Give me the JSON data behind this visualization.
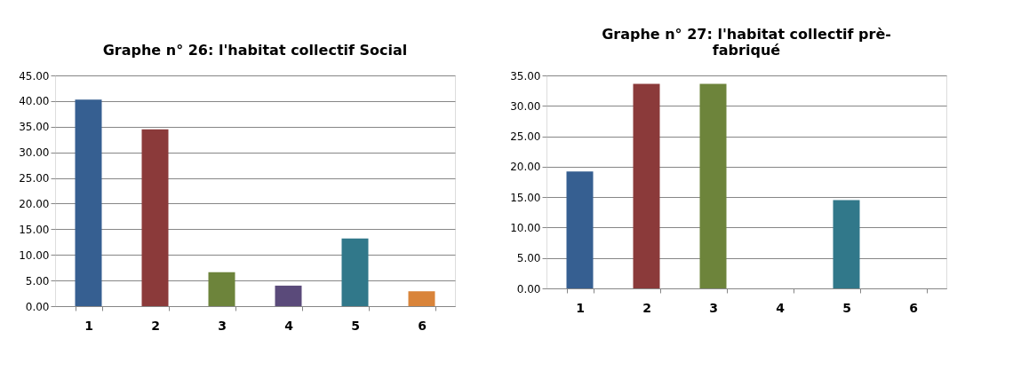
{
  "chart_data": [
    {
      "type": "bar",
      "title": "Graphe n° 26: l'habitat collectif Social",
      "categories": [
        "1",
        "2",
        "3",
        "4",
        "5",
        "6"
      ],
      "values": [
        40.3,
        34.5,
        6.6,
        4.0,
        13.2,
        2.9
      ],
      "colors": [
        "#365f91",
        "#8b3a3a",
        "#6d843b",
        "#5a4a7a",
        "#31788a",
        "#d9843a"
      ],
      "ylim": [
        0,
        45
      ],
      "yticks": [
        {
          "value": 0,
          "label": "0.00"
        },
        {
          "value": 5,
          "label": "5.00"
        },
        {
          "value": 10,
          "label": "10.00"
        },
        {
          "value": 15,
          "label": "15.00"
        },
        {
          "value": 20,
          "label": "20.00"
        },
        {
          "value": 25,
          "label": "25.00"
        },
        {
          "value": 30,
          "label": "30.00"
        },
        {
          "value": 35,
          "label": "35.00"
        },
        {
          "value": 40,
          "label": "40.00"
        },
        {
          "value": 45,
          "label": "45.00"
        }
      ],
      "grid": "y"
    },
    {
      "type": "bar",
      "title": "Graphe n° 27: l'habitat collectif prè-\nfabriqué",
      "categories": [
        "1",
        "2",
        "3",
        "4",
        "5",
        "6"
      ],
      "values": [
        19.2,
        33.6,
        33.6,
        0,
        14.5,
        0
      ],
      "colors": [
        "#365f91",
        "#8b3a3a",
        "#6d843b",
        "#5a4a7a",
        "#31788a",
        "#d9843a"
      ],
      "ylim": [
        0,
        35
      ],
      "yticks": [
        {
          "value": 0,
          "label": "0.00"
        },
        {
          "value": 5,
          "label": "5.00"
        },
        {
          "value": 10,
          "label": "10.00"
        },
        {
          "value": 15,
          "label": "15.00"
        },
        {
          "value": 20,
          "label": "20.00"
        },
        {
          "value": 25,
          "label": "25.00"
        },
        {
          "value": 30,
          "label": "30.00"
        },
        {
          "value": 35,
          "label": "35.00"
        }
      ],
      "grid": "y"
    }
  ]
}
